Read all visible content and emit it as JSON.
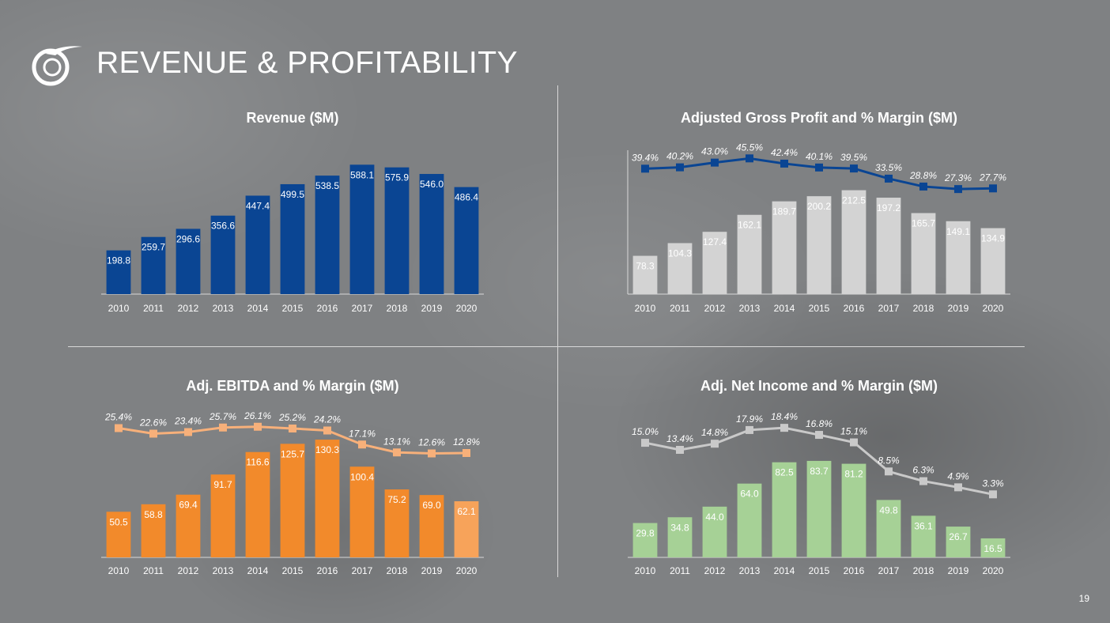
{
  "header": {
    "title": "REVENUE & PROFITABILITY"
  },
  "page_number": "19",
  "colors": {
    "revenue": "#0a4593",
    "gross_bar": "#d3d3d3",
    "gross_line": "#0a4593",
    "ebitda_bar": "#f28a2b",
    "ebitda_bar_last": "#f7a35a",
    "ebitda_line": "#f7b07a",
    "net_bar": "#a6d196",
    "net_line": "#c9c9c9"
  },
  "chart_data": [
    {
      "id": "revenue",
      "type": "bar",
      "title": "Revenue ($M)",
      "categories": [
        "2010",
        "2011",
        "2012",
        "2013",
        "2014",
        "2015",
        "2016",
        "2017",
        "2018",
        "2019",
        "2020"
      ],
      "values": [
        198.8,
        259.7,
        296.6,
        356.6,
        447.4,
        499.5,
        538.5,
        588.1,
        575.9,
        546.0,
        486.4
      ],
      "labels": [
        "198.8",
        "259.7",
        "296.6",
        "356.6",
        "447.4",
        "499.5",
        "538.5",
        "588.1",
        "575.9",
        "546.0",
        "486.4"
      ],
      "ylim": [
        0,
        600
      ]
    },
    {
      "id": "gross",
      "type": "bar",
      "title": "Adjusted Gross Profit and % Margin ($M)",
      "categories": [
        "2010",
        "2011",
        "2012",
        "2013",
        "2014",
        "2015",
        "2016",
        "2017",
        "2018",
        "2019",
        "2020"
      ],
      "values": [
        78.3,
        104.3,
        127.4,
        162.1,
        189.7,
        200.2,
        212.5,
        197.2,
        165.7,
        149.1,
        134.9
      ],
      "labels": [
        "78.3",
        "104.3",
        "127.4",
        "162.1",
        "189.7",
        "200.2",
        "212.5",
        "197.2",
        "165.7",
        "149.1",
        "134.9"
      ],
      "ylim": [
        0,
        270
      ],
      "line": {
        "name": "% Margin",
        "values": [
          39.4,
          40.2,
          43.0,
          45.5,
          42.4,
          40.1,
          39.5,
          33.5,
          28.8,
          27.3,
          27.7
        ],
        "labels": [
          "39.4%",
          "40.2%",
          "43.0%",
          "45.5%",
          "42.4%",
          "40.1%",
          "39.5%",
          "33.5%",
          "28.8%",
          "27.3%",
          "27.7%"
        ],
        "ylim": [
          -35,
          48
        ]
      }
    },
    {
      "id": "ebitda",
      "type": "bar",
      "title": "Adj. EBITDA and % Margin ($M)",
      "categories": [
        "2010",
        "2011",
        "2012",
        "2013",
        "2014",
        "2015",
        "2016",
        "2017",
        "2018",
        "2019",
        "2020"
      ],
      "values": [
        50.5,
        58.8,
        69.4,
        91.7,
        116.6,
        125.7,
        130.3,
        100.4,
        75.2,
        69.0,
        62.1
      ],
      "labels": [
        "50.5",
        "58.8",
        "69.4",
        "91.7",
        "116.6",
        "125.7",
        "130.3",
        "100.4",
        "75.2",
        "69.0",
        "62.1"
      ],
      "ylim": [
        0,
        140
      ],
      "line": {
        "name": "% Margin",
        "values": [
          25.4,
          22.6,
          23.4,
          25.7,
          26.1,
          25.2,
          24.2,
          17.1,
          13.1,
          12.6,
          12.8
        ],
        "labels": [
          "25.4%",
          "22.6%",
          "23.4%",
          "25.7%",
          "26.1%",
          "25.2%",
          "24.2%",
          "17.1%",
          "13.1%",
          "12.6%",
          "12.8%"
        ],
        "ylim": [
          -40,
          28
        ]
      }
    },
    {
      "id": "net",
      "type": "bar",
      "title": "Adj. Net Income and % Margin ($M)",
      "categories": [
        "2010",
        "2011",
        "2012",
        "2013",
        "2014",
        "2015",
        "2016",
        "2017",
        "2018",
        "2019",
        "2020"
      ],
      "values": [
        29.8,
        34.8,
        44.0,
        64.0,
        82.5,
        83.7,
        81.2,
        49.8,
        36.1,
        26.7,
        16.5
      ],
      "labels": [
        "29.8",
        "34.8",
        "44.0",
        "64.0",
        "82.5",
        "83.7",
        "81.2",
        "49.8",
        "36.1",
        "26.7",
        "16.5"
      ],
      "ylim": [
        0,
        96
      ],
      "line": {
        "name": "% Margin",
        "values": [
          15.0,
          13.4,
          14.8,
          17.9,
          18.4,
          16.8,
          15.1,
          8.5,
          6.3,
          4.9,
          3.3
        ],
        "labels": [
          "15.0%",
          "13.4%",
          "14.8%",
          "17.9%",
          "18.4%",
          "16.8%",
          "15.1%",
          "8.5%",
          "6.3%",
          "4.9%",
          "3.3%"
        ],
        "ylim": [
          -11,
          19.5
        ]
      }
    }
  ]
}
